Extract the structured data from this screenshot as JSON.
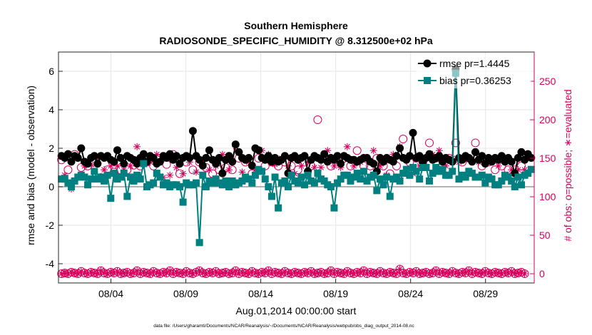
{
  "chart_data": {
    "type": "line",
    "title_line1": "Southern Hemisphere",
    "title_line2": "RADIOSONDE_SPECIFIC_HUMIDITY @ 8.312500e+02 hPa",
    "xlabel": "Aug.01,2014 00:00:00 start",
    "ylabel_left": "rmse and bias (model - observation)",
    "ylabel_right": "# of obs: o=possible; ∗=evaluated",
    "footer": "data file: /Users/gharamti/Documents/NCAR/Reanalysis/~/Documents/NCAR/Reanalysis/webpub/obs_diag_output_2014-08.nc",
    "x_range_days": [
      0,
      31.75
    ],
    "x_ticks": [
      {
        "value": 3.5,
        "label": "08/04"
      },
      {
        "value": 8.5,
        "label": "08/09"
      },
      {
        "value": 13.5,
        "label": "08/14"
      },
      {
        "value": 18.5,
        "label": "08/19"
      },
      {
        "value": 23.5,
        "label": "08/24"
      },
      {
        "value": 28.5,
        "label": "08/29"
      }
    ],
    "y_left": {
      "ylim": [
        -5,
        7
      ],
      "ticks": [
        "-4",
        "-2",
        "0",
        "2",
        "4",
        "6"
      ]
    },
    "y_right": {
      "ylim": [
        -12,
        288
      ],
      "ticks": [
        "0",
        "50",
        "100",
        "150",
        "200",
        "250"
      ]
    },
    "legend": [
      {
        "label": "rmse pr=1.4445",
        "color": "#000000"
      },
      {
        "label": "bias pr=0.36253",
        "color": "#008080"
      }
    ],
    "colors": {
      "rmse": "#000000",
      "bias": "#008080",
      "obs": "#d6005c",
      "grid": "#e6e6e6",
      "zero": "#9a9a9a"
    },
    "series": [
      {
        "name": "rmse",
        "values": [
          1.6,
          1.5,
          1.7,
          1.3,
          1.6,
          1.5,
          2.0,
          1.3,
          1.2,
          1.5,
          1.6,
          1.2,
          1.6,
          1.5,
          1.6,
          1.4,
          1.3,
          1.9,
          1.5,
          1.2,
          1.6,
          1.5,
          1.4,
          1.2,
          1.5,
          1.7,
          1.3,
          1.6,
          1.5,
          1.2,
          1.3,
          1.6,
          1.5,
          1.7,
          1.4,
          1.6,
          1.2,
          1.5,
          1.6,
          1.5,
          2.9,
          1.6,
          1.4,
          1.1,
          1.5,
          1.9,
          1.4,
          1.2,
          1.5,
          0.7,
          1.4,
          1.6,
          1.3,
          2.2,
          1.8,
          1.5,
          1.4,
          1.5,
          1.1,
          2.0,
          1.9,
          1.5,
          1.4,
          1.6,
          1.3,
          1.5,
          1.3,
          1.4,
          1.6,
          0.7,
          1.5,
          1.6,
          1.4,
          1.5,
          1.6,
          0.8,
          1.4,
          1.6,
          1.5,
          1.4,
          1.7,
          1.3,
          1.5,
          1.4,
          1.6,
          1.2,
          1.6,
          1.5,
          1.4,
          1.4,
          1.3,
          1.4,
          1.5,
          1.5,
          1.3,
          1.2,
          0.8,
          1.5,
          1.3,
          1.5,
          1.4,
          1.3,
          1.6,
          2.0,
          1.5,
          1.4,
          1.6,
          2.8,
          1.5,
          1.6,
          1.3,
          1.5,
          1.7,
          1.4,
          1.5,
          1.6,
          1.3,
          1.5,
          1.4,
          1.3,
          6.1,
          1.5,
          1.4,
          1.6,
          1.5,
          1.3,
          1.8,
          1.4,
          1.6,
          1.2,
          1.5,
          1.3,
          1.5,
          1.4,
          1.6,
          1.3,
          1.5,
          1.3,
          0.7,
          1.5,
          1.8,
          1.4,
          1.7,
          1.5
        ]
      },
      {
        "name": "bias",
        "values": [
          0.4,
          0.4,
          0.2,
          0.0,
          0.3,
          0.5,
          0.6,
          0.5,
          0.1,
          0.4,
          0.8,
          0.4,
          0.5,
          0.3,
          0.6,
          -0.6,
          0.7,
          0.4,
          0.5,
          0.7,
          -0.5,
          0.5,
          0.3,
          0.6,
          0.4,
          1.2,
          0.0,
          0.1,
          0.2,
          0.7,
          0.5,
          0.1,
          0.2,
          0.0,
          0.1,
          0.1,
          0.0,
          -0.8,
          0.2,
          0.1,
          0.1,
          0.2,
          -2.9,
          0.6,
          0.0,
          0.3,
          0.2,
          0.4,
          0.2,
          0.1,
          0.3,
          0.0,
          0.3,
          0.1,
          0.2,
          0.3,
          0.5,
          0.4,
          0.2,
          0.6,
          0.9,
          0.8,
          0.4,
          0.0,
          -0.5,
          0.5,
          -1.1,
          0.2,
          0.3,
          0.0,
          0.6,
          0.3,
          0.2,
          0.5,
          0.1,
          0.6,
          0.3,
          0.2,
          0.7,
          0.4,
          0.3,
          0.1,
          0.0,
          -1.1,
          0.2,
          0.4,
          0.6,
          0.6,
          0.3,
          0.5,
          0.7,
          0.4,
          0.8,
          0.3,
          0.5,
          0.6,
          -0.2,
          0.4,
          0.1,
          0.5,
          -0.5,
          0.4,
          0.5,
          0.3,
          0.7,
          0.9,
          0.6,
          1.0,
          0.8,
          0.4,
          1.0,
          1.0,
          0.3,
          0.7,
          1.0,
          0.8,
          0.9,
          0.6,
          0.6,
          0.8,
          5.9,
          0.4,
          0.6,
          0.5,
          0.8,
          0.7,
          0.5,
          0.5,
          0.6,
          0.2,
          0.5,
          0.4,
          0.1,
          0.1,
          0.3,
          0.6,
          0.5,
          0.3,
          0.0,
          0.5,
          0.1,
          0.6,
          0.7,
          0.9
        ]
      },
      {
        "name": "obs_possible_upper",
        "values": [
          148,
          140,
          135,
          133,
          155,
          140,
          138,
          145,
          140,
          128,
          145,
          164,
          125,
          140,
          135,
          150,
          132,
          145,
          135,
          140,
          135,
          148,
          141,
          185,
          140,
          160,
          145,
          150,
          140,
          165,
          150,
          135,
          142,
          135,
          155,
          145,
          130,
          140,
          145,
          150,
          135,
          140,
          145,
          150,
          138,
          142,
          130,
          140,
          135,
          150,
          138,
          140,
          135,
          175,
          150,
          140,
          145,
          150,
          130,
          140,
          150,
          160,
          140,
          170,
          145,
          150,
          140,
          160,
          145,
          150,
          140,
          138,
          135,
          150,
          145,
          150,
          140,
          142,
          200,
          145,
          150,
          165,
          140,
          145,
          150,
          145,
          150,
          170,
          140,
          145,
          160,
          150,
          140,
          155,
          140,
          165,
          150,
          148,
          140,
          135,
          130,
          165,
          140,
          180,
          175,
          160,
          145,
          140,
          150,
          150,
          145,
          160,
          170,
          165,
          150,
          165,
          140,
          145,
          150,
          160,
          170,
          150,
          145,
          160,
          150,
          155,
          170,
          150,
          140,
          160,
          145,
          150,
          135,
          145,
          140,
          150,
          135,
          140,
          145,
          140,
          140,
          140
        ]
      },
      {
        "name": "obs_evaluated_upper",
        "values": [
          140,
          128,
          122,
          110,
          105,
          150,
          145,
          140,
          138,
          142,
          120,
          150,
          110,
          135,
          128,
          140,
          155,
          140,
          130,
          135,
          128,
          140,
          135,
          165,
          128,
          150,
          130,
          145,
          130,
          155,
          140,
          125,
          135,
          128,
          145,
          138,
          120,
          130,
          140,
          145,
          125,
          132,
          140,
          142,
          130,
          135,
          128,
          140,
          130,
          155,
          132,
          135,
          130,
          165,
          145,
          132,
          140,
          145,
          125,
          135,
          145,
          160,
          135,
          155,
          140,
          142,
          135,
          150,
          135,
          140,
          135,
          130,
          128,
          140,
          138,
          145,
          135,
          138,
          190,
          138,
          145,
          160,
          135,
          140,
          145,
          138,
          140,
          165,
          135,
          140,
          150,
          145,
          135,
          150,
          135,
          160,
          145,
          140,
          130,
          128,
          125,
          155,
          135,
          165,
          165,
          150,
          135,
          130,
          140,
          140,
          138,
          150,
          160,
          155,
          140,
          160,
          135,
          140,
          145,
          150,
          165,
          145,
          138,
          150,
          145,
          148,
          160,
          145,
          135,
          150,
          140,
          145,
          130,
          140,
          135,
          145,
          130,
          135,
          140,
          135,
          135,
          135
        ]
      },
      {
        "name": "obs_lower",
        "values": [
          0,
          1,
          0,
          2,
          1,
          0,
          3,
          1,
          0,
          2,
          1,
          0,
          4,
          1,
          0,
          2,
          1,
          3,
          0,
          1,
          2,
          0,
          1,
          4,
          0,
          2,
          1,
          0,
          3,
          1,
          0,
          2,
          1,
          4,
          0,
          2,
          1,
          0,
          3,
          1,
          0,
          2,
          4,
          1,
          0,
          2,
          1,
          3,
          0,
          1,
          2,
          0,
          1,
          4,
          0,
          2,
          1,
          0,
          3,
          1,
          0,
          2,
          1,
          4,
          0,
          2,
          1,
          0,
          3,
          1,
          0,
          2,
          1,
          0,
          2,
          1,
          3,
          0,
          1,
          2,
          0,
          1,
          4,
          0,
          2,
          1,
          0,
          3,
          1,
          0,
          2,
          1,
          4,
          0,
          2,
          1,
          0,
          3,
          1,
          0,
          2,
          1,
          0,
          6,
          1,
          0,
          2,
          1,
          3,
          0,
          1,
          2,
          0,
          1,
          4,
          0,
          2,
          1,
          0,
          3,
          1,
          0,
          2,
          1,
          4,
          0,
          2,
          1,
          0,
          3,
          1,
          0,
          2,
          1,
          0,
          2,
          1,
          3,
          0,
          1,
          2,
          0
        ]
      }
    ]
  }
}
